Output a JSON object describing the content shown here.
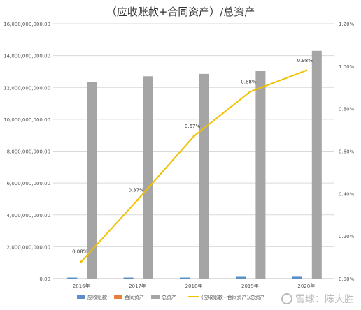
{
  "chart_data": {
    "type": "bar",
    "title": "（应收账款+合同资产）/总资产",
    "categories": [
      "2016年",
      "2017年",
      "2018年",
      "2019年",
      "2020年"
    ],
    "series": [
      {
        "name": "应收账款",
        "type": "bar",
        "axis": "left",
        "color": "#5b8fc9",
        "values": [
          40000000,
          30000000,
          60000000,
          110000000,
          115000000
        ]
      },
      {
        "name": "合同资产",
        "type": "bar",
        "axis": "left",
        "color": "#e8803a",
        "values": [
          0,
          0,
          0,
          0,
          0
        ]
      },
      {
        "name": "总资产",
        "type": "bar",
        "axis": "left",
        "color": "#a5a5a5",
        "values": [
          12350000000,
          12700000000,
          12850000000,
          13050000000,
          14300000000
        ]
      },
      {
        "name": "(应收账款+合同资产)/总资产",
        "type": "line",
        "axis": "right",
        "color": "#f2c000",
        "values": [
          0.08,
          0.37,
          0.67,
          0.88,
          0.98
        ]
      }
    ],
    "point_labels": [
      "0.08%",
      "0.37%",
      "0.67%",
      "0.88%",
      "0.98%"
    ],
    "yleft": {
      "min": 0,
      "max": 16000000000,
      "step": 2000000000,
      "ticks": [
        "0.00",
        "2,000,000,000.00",
        "4,000,000,000.00",
        "6,000,000,000.00",
        "8,000,000,000.00",
        "10,000,000,000.00",
        "12,000,000,000.00",
        "14,000,000,000.00",
        "16,000,000,000.00"
      ]
    },
    "yright": {
      "min": 0,
      "max": 1.2,
      "step": 0.2,
      "ticks": [
        "0.00%",
        "0.20%",
        "0.40%",
        "0.60%",
        "0.80%",
        "1.00%",
        "1.20%"
      ]
    },
    "grid": true,
    "legend_position": "bottom",
    "legend": [
      "应收账款",
      "合同资产",
      "总资产",
      "(应收账款+合同资产)/总资产"
    ]
  },
  "watermark": {
    "text": "雪球：陈大胜"
  }
}
